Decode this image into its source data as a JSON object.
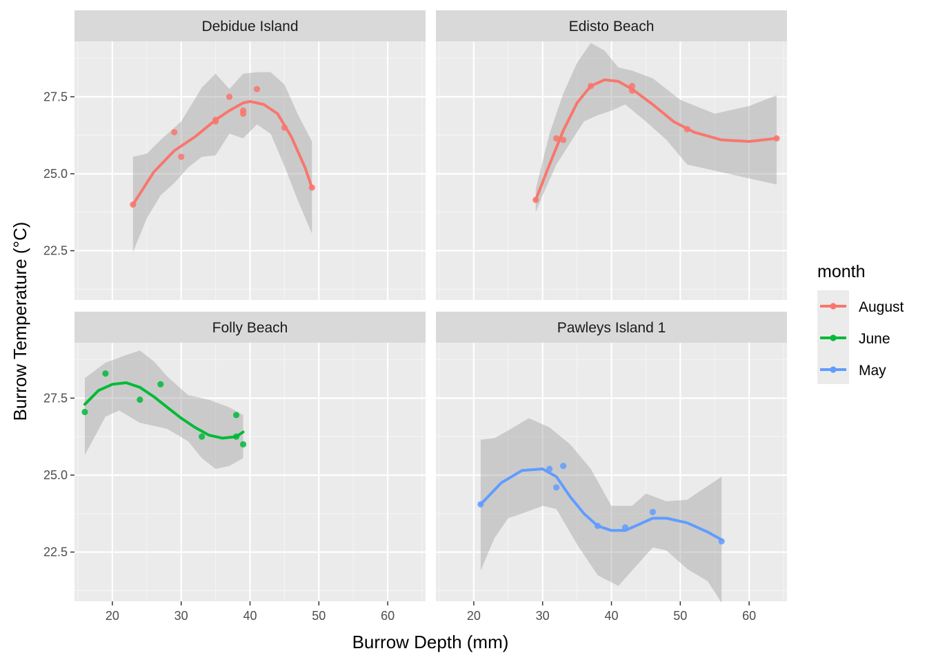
{
  "chart_data": {
    "type": "scatter",
    "xlabel": "Burrow Depth (mm)",
    "ylabel": "Burrow Temperature (°C)",
    "xlim": [
      14.5,
      65.5
    ],
    "ylim": [
      20.9,
      29.3
    ],
    "x_ticks": [
      20,
      30,
      40,
      50,
      60
    ],
    "y_ticks": [
      22.5,
      25.0,
      27.5
    ],
    "x_tick_labels": [
      "20",
      "30",
      "40",
      "50",
      "60"
    ],
    "y_tick_labels": [
      "22.5",
      "25.0",
      "27.5"
    ],
    "grid": true,
    "legend": {
      "title": "month",
      "position": "right",
      "entries": [
        {
          "label": "August",
          "color": "#F8766D"
        },
        {
          "label": "June",
          "color": "#00BA38"
        },
        {
          "label": "May",
          "color": "#619CFF"
        }
      ]
    },
    "panels": [
      {
        "title": "Debidue Island",
        "month": "August",
        "color": "#F8766D",
        "points": [
          [
            23,
            24.0
          ],
          [
            29,
            26.35
          ],
          [
            30,
            25.55
          ],
          [
            35,
            26.75
          ],
          [
            35,
            26.7
          ],
          [
            37,
            27.5
          ],
          [
            39,
            27.05
          ],
          [
            39,
            26.95
          ],
          [
            41,
            27.75
          ],
          [
            45,
            26.5
          ],
          [
            49,
            24.55
          ]
        ],
        "smooth": [
          [
            23,
            24.0
          ],
          [
            26,
            25.05
          ],
          [
            29,
            25.75
          ],
          [
            32,
            26.2
          ],
          [
            35,
            26.75
          ],
          [
            37,
            27.05
          ],
          [
            39,
            27.3
          ],
          [
            40,
            27.35
          ],
          [
            42,
            27.25
          ],
          [
            44,
            26.95
          ],
          [
            46,
            26.2
          ],
          [
            48,
            25.2
          ],
          [
            49,
            24.55
          ]
        ],
        "ribbon_upper": [
          [
            23,
            25.55
          ],
          [
            25,
            25.65
          ],
          [
            27,
            26.1
          ],
          [
            30,
            26.7
          ],
          [
            33,
            27.8
          ],
          [
            35,
            28.25
          ],
          [
            37,
            27.75
          ],
          [
            39,
            28.25
          ],
          [
            41,
            28.3
          ],
          [
            43,
            28.3
          ],
          [
            45,
            27.9
          ],
          [
            47,
            26.9
          ],
          [
            49,
            26.05
          ]
        ],
        "ribbon_lower": [
          [
            49,
            23.05
          ],
          [
            47,
            24.1
          ],
          [
            45,
            25.25
          ],
          [
            43,
            26.3
          ],
          [
            41,
            26.6
          ],
          [
            39,
            26.15
          ],
          [
            37,
            26.3
          ],
          [
            35,
            25.6
          ],
          [
            33,
            25.55
          ],
          [
            31,
            25.2
          ],
          [
            29,
            24.7
          ],
          [
            27,
            24.3
          ],
          [
            25,
            23.55
          ],
          [
            23,
            22.45
          ]
        ]
      },
      {
        "title": "Edisto Beach",
        "month": "August",
        "color": "#F8766D",
        "points": [
          [
            29,
            24.15
          ],
          [
            32,
            26.15
          ],
          [
            33,
            26.1
          ],
          [
            37,
            27.85
          ],
          [
            43,
            27.85
          ],
          [
            43,
            27.7
          ],
          [
            51,
            26.45
          ],
          [
            64,
            26.15
          ]
        ],
        "smooth": [
          [
            29,
            24.15
          ],
          [
            31,
            25.3
          ],
          [
            33,
            26.4
          ],
          [
            35,
            27.3
          ],
          [
            37,
            27.85
          ],
          [
            39,
            28.05
          ],
          [
            41,
            28.0
          ],
          [
            43,
            27.75
          ],
          [
            46,
            27.25
          ],
          [
            49,
            26.7
          ],
          [
            52,
            26.35
          ],
          [
            56,
            26.1
          ],
          [
            60,
            26.05
          ],
          [
            64,
            26.15
          ]
        ],
        "ribbon_upper": [
          [
            29,
            24.5
          ],
          [
            31,
            26.3
          ],
          [
            33,
            27.6
          ],
          [
            35,
            28.6
          ],
          [
            37,
            29.25
          ],
          [
            39,
            29.0
          ],
          [
            41,
            28.45
          ],
          [
            43,
            28.35
          ],
          [
            46,
            28.1
          ],
          [
            50,
            27.4
          ],
          [
            55,
            26.95
          ],
          [
            60,
            27.2
          ],
          [
            64,
            27.55
          ]
        ],
        "ribbon_lower": [
          [
            64,
            24.65
          ],
          [
            60,
            24.85
          ],
          [
            55,
            25.1
          ],
          [
            51,
            25.3
          ],
          [
            48,
            26.1
          ],
          [
            45,
            26.7
          ],
          [
            42,
            27.25
          ],
          [
            40,
            27.05
          ],
          [
            38,
            26.9
          ],
          [
            36,
            26.7
          ],
          [
            34,
            26.0
          ],
          [
            32,
            25.3
          ],
          [
            30,
            24.3
          ],
          [
            29,
            23.75
          ]
        ]
      },
      {
        "title": "Folly Beach",
        "month": "June",
        "color": "#00BA38",
        "points": [
          [
            16,
            27.05
          ],
          [
            19,
            28.3
          ],
          [
            24,
            27.45
          ],
          [
            27,
            27.95
          ],
          [
            33,
            26.25
          ],
          [
            38,
            26.95
          ],
          [
            38,
            26.25
          ],
          [
            39,
            26.0
          ]
        ],
        "smooth": [
          [
            16,
            27.3
          ],
          [
            18,
            27.75
          ],
          [
            20,
            27.95
          ],
          [
            22,
            28.0
          ],
          [
            24,
            27.85
          ],
          [
            26,
            27.55
          ],
          [
            28,
            27.2
          ],
          [
            30,
            26.85
          ],
          [
            32,
            26.55
          ],
          [
            34,
            26.3
          ],
          [
            36,
            26.2
          ],
          [
            38,
            26.25
          ],
          [
            39,
            26.4
          ]
        ],
        "ribbon_upper": [
          [
            16,
            28.15
          ],
          [
            19,
            28.65
          ],
          [
            22,
            28.9
          ],
          [
            24,
            29.05
          ],
          [
            26,
            28.7
          ],
          [
            28,
            28.2
          ],
          [
            31,
            27.6
          ],
          [
            34,
            27.45
          ],
          [
            37,
            27.2
          ],
          [
            39,
            26.95
          ]
        ],
        "ribbon_lower": [
          [
            39,
            25.55
          ],
          [
            37,
            25.3
          ],
          [
            35,
            25.2
          ],
          [
            33,
            25.55
          ],
          [
            31,
            26.1
          ],
          [
            28,
            26.5
          ],
          [
            26,
            26.6
          ],
          [
            24,
            26.7
          ],
          [
            21,
            27.1
          ],
          [
            19,
            26.9
          ],
          [
            16,
            25.65
          ]
        ]
      },
      {
        "title": "Pawleys Island 1",
        "month": "May",
        "color": "#619CFF",
        "points": [
          [
            21,
            24.05
          ],
          [
            31,
            25.2
          ],
          [
            32,
            24.6
          ],
          [
            33,
            25.3
          ],
          [
            38,
            23.35
          ],
          [
            42,
            23.3
          ],
          [
            46,
            23.8
          ],
          [
            56,
            22.85
          ]
        ],
        "smooth": [
          [
            21,
            24.05
          ],
          [
            24,
            24.75
          ],
          [
            27,
            25.15
          ],
          [
            30,
            25.2
          ],
          [
            32,
            24.95
          ],
          [
            34,
            24.3
          ],
          [
            36,
            23.75
          ],
          [
            38,
            23.35
          ],
          [
            40,
            23.2
          ],
          [
            42,
            23.2
          ],
          [
            44,
            23.4
          ],
          [
            46,
            23.6
          ],
          [
            48,
            23.6
          ],
          [
            51,
            23.45
          ],
          [
            54,
            23.15
          ],
          [
            56,
            22.9
          ]
        ],
        "ribbon_upper": [
          [
            21,
            26.15
          ],
          [
            23,
            26.2
          ],
          [
            25,
            26.45
          ],
          [
            28,
            26.85
          ],
          [
            31,
            26.55
          ],
          [
            34,
            26.0
          ],
          [
            37,
            25.2
          ],
          [
            40,
            24.0
          ],
          [
            43,
            24.0
          ],
          [
            45,
            24.4
          ],
          [
            48,
            24.15
          ],
          [
            51,
            24.2
          ],
          [
            54,
            24.65
          ],
          [
            56,
            24.95
          ]
        ],
        "ribbon_lower": [
          [
            56,
            20.85
          ],
          [
            54,
            21.55
          ],
          [
            51,
            21.95
          ],
          [
            48,
            22.55
          ],
          [
            46,
            22.65
          ],
          [
            43,
            21.9
          ],
          [
            41,
            21.4
          ],
          [
            38,
            21.75
          ],
          [
            35,
            22.75
          ],
          [
            32,
            23.9
          ],
          [
            30,
            24.0
          ],
          [
            27,
            23.75
          ],
          [
            25,
            23.6
          ],
          [
            23,
            22.95
          ],
          [
            21,
            21.9
          ]
        ]
      }
    ]
  }
}
